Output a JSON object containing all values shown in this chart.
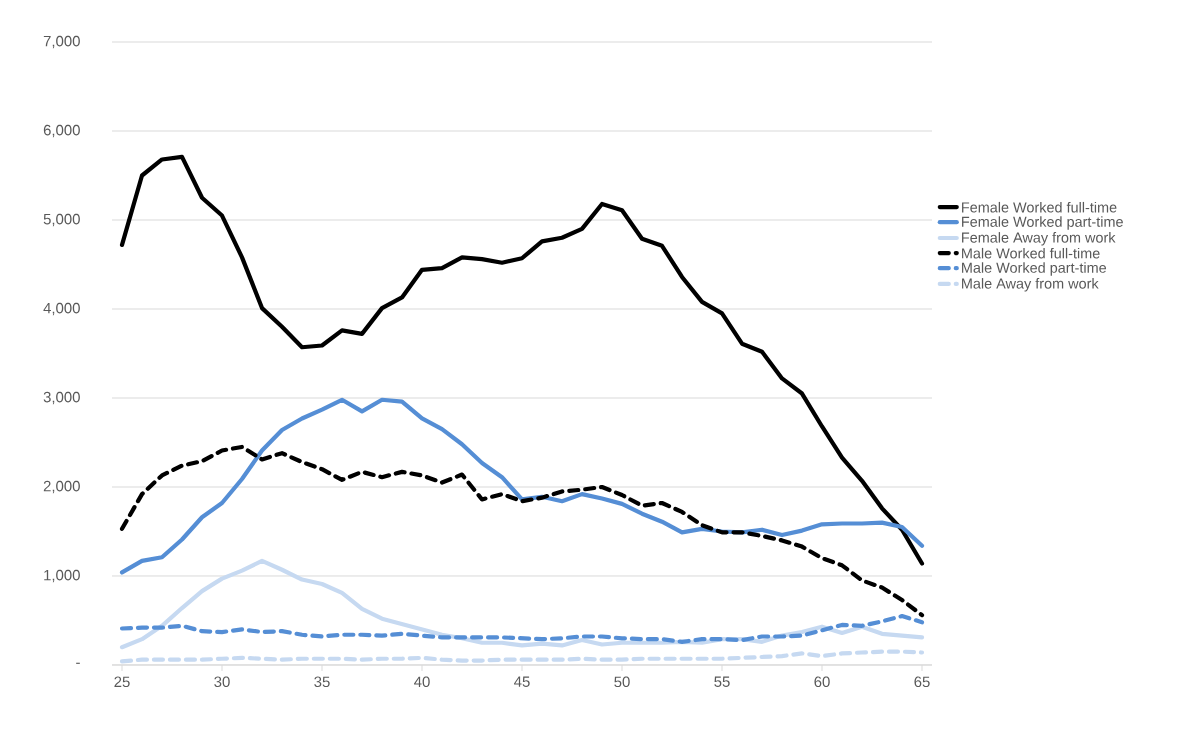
{
  "chart_data": {
    "type": "line",
    "categories": [
      "25",
      null,
      null,
      null,
      null,
      "30",
      null,
      null,
      null,
      null,
      "35",
      null,
      null,
      null,
      null,
      "40",
      null,
      null,
      null,
      null,
      "45",
      null,
      null,
      null,
      null,
      "50",
      null,
      null,
      null,
      null,
      "55",
      null,
      null,
      null,
      null,
      "60",
      null,
      null,
      null,
      null,
      "65"
    ],
    "ylim": [
      0,
      7000
    ],
    "yticks": [
      {
        "value": 0,
        "label": "-"
      },
      {
        "value": 1000,
        "label": "1,000"
      },
      {
        "value": 2000,
        "label": "2,000"
      },
      {
        "value": 3000,
        "label": "3,000"
      },
      {
        "value": 4000,
        "label": "4,000"
      },
      {
        "value": 5000,
        "label": "5,000"
      },
      {
        "value": 6000,
        "label": "6,000"
      },
      {
        "value": 7000,
        "label": "7,000"
      }
    ],
    "grid": "y",
    "legend": "right",
    "series": [
      {
        "name": "Female   Worked full-time",
        "color": "#000000",
        "line_style": "solid",
        "values": [
          4720,
          5500,
          5680,
          5710,
          5250,
          5050,
          4580,
          4010,
          3800,
          3570,
          3590,
          3760,
          3720,
          4010,
          4130,
          4440,
          4460,
          4580,
          4560,
          4520,
          4570,
          4760,
          4800,
          4900,
          5180,
          5110,
          4790,
          4710,
          4360,
          4080,
          3950,
          3610,
          3520,
          3220,
          3050,
          2680,
          2330,
          2070,
          1760,
          1520,
          1140
        ]
      },
      {
        "name": "Female   Worked part-time",
        "color": "#558ed5",
        "line_style": "solid",
        "values": [
          1040,
          1170,
          1210,
          1410,
          1660,
          1820,
          2090,
          2410,
          2640,
          2770,
          2870,
          2980,
          2850,
          2980,
          2960,
          2770,
          2650,
          2480,
          2270,
          2110,
          1860,
          1890,
          1840,
          1920,
          1870,
          1810,
          1700,
          1610,
          1490,
          1530,
          1500,
          1490,
          1520,
          1460,
          1510,
          1580,
          1590,
          1590,
          1600,
          1550,
          1340
        ]
      },
      {
        "name": "Female   Away from work",
        "color": "#c6d9f1",
        "line_style": "solid",
        "values": [
          200,
          290,
          440,
          640,
          830,
          970,
          1060,
          1170,
          1070,
          960,
          910,
          810,
          630,
          520,
          460,
          400,
          340,
          300,
          250,
          250,
          220,
          240,
          220,
          280,
          230,
          250,
          250,
          250,
          260,
          250,
          290,
          290,
          260,
          330,
          370,
          430,
          360,
          430,
          350,
          330,
          310
        ]
      },
      {
        "name": "Male   Worked full-time",
        "color": "#000000",
        "line_style": "dashed",
        "values": [
          1530,
          1920,
          2130,
          2240,
          2290,
          2410,
          2450,
          2310,
          2380,
          2280,
          2200,
          2080,
          2170,
          2110,
          2170,
          2130,
          2050,
          2140,
          1860,
          1920,
          1840,
          1880,
          1950,
          1970,
          2000,
          1910,
          1790,
          1820,
          1720,
          1570,
          1490,
          1490,
          1450,
          1400,
          1330,
          1200,
          1120,
          950,
          870,
          730,
          560
        ]
      },
      {
        "name": "Male   Worked part-time",
        "color": "#558ed5",
        "line_style": "dashed",
        "values": [
          410,
          420,
          420,
          440,
          380,
          370,
          400,
          370,
          380,
          340,
          320,
          340,
          340,
          330,
          350,
          330,
          310,
          310,
          310,
          310,
          300,
          290,
          300,
          320,
          320,
          300,
          290,
          290,
          260,
          290,
          290,
          280,
          320,
          320,
          330,
          390,
          450,
          440,
          490,
          550,
          480
        ]
      },
      {
        "name": "Male   Away from work",
        "color": "#c6d9f1",
        "line_style": "dashed",
        "values": [
          40,
          60,
          60,
          60,
          60,
          70,
          80,
          70,
          60,
          70,
          70,
          70,
          60,
          70,
          70,
          80,
          60,
          50,
          50,
          60,
          60,
          60,
          60,
          70,
          60,
          60,
          70,
          70,
          70,
          70,
          70,
          80,
          90,
          100,
          130,
          100,
          130,
          140,
          150,
          150,
          140
        ]
      }
    ]
  }
}
